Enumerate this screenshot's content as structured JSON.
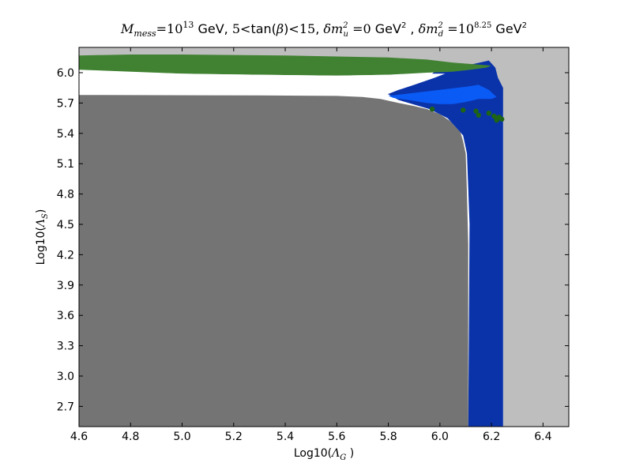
{
  "chart_data": {
    "type": "area",
    "title": {
      "m_sym": "M",
      "m_sub": "mess",
      "eq1": "=",
      "base1": "10",
      "exp1": "13",
      "unit1": " GeV, ",
      "five": "5",
      "lt1": "<",
      "tanb": "tan(",
      "beta": "β",
      "tanb_close": ")",
      "lt2": "<",
      "fifteen": "15",
      "comma1": ", ",
      "dmu": "δm",
      "dmu_sub": "u",
      "dmu_sup": "2",
      "eq2": " =",
      "zero": "0",
      "gev2a": " GeV",
      "gev2a_sup": "2",
      "comma2": " , ",
      "dmd": "δm",
      "dmd_sub": "d",
      "dmd_sup": "2",
      "eq3": " =",
      "base2": "10",
      "exp2": "8.25",
      "gev2b": "  GeV",
      "gev2b_sup": "2"
    },
    "xlabel": {
      "prefix": "Log10(",
      "sym": "Λ",
      "sub": "G",
      "suffix": " )"
    },
    "ylabel": {
      "prefix": "Log10(",
      "sym": "Λ",
      "sub": "S",
      "suffix": ")"
    },
    "xlim": [
      4.6,
      6.5
    ],
    "ylim": [
      2.5,
      6.25
    ],
    "x_ticks": [
      "4.6",
      "4.8",
      "5.0",
      "5.2",
      "5.4",
      "5.6",
      "5.8",
      "6.0",
      "6.2",
      "6.4"
    ],
    "y_ticks": [
      "2.7",
      "3.0",
      "3.3",
      "3.6",
      "3.9",
      "4.2",
      "4.5",
      "4.8",
      "5.1",
      "5.4",
      "5.7",
      "6.0"
    ],
    "grid": false,
    "colors": {
      "excluded_light": "#bebebe",
      "excluded_dark": "#747474",
      "green": "#418232",
      "blue_dark": "#0a33aa",
      "blue_light": "#0a5bf5",
      "allowed": "#ffffff",
      "dots": "#1e6414"
    },
    "regions": [
      {
        "id": "light-gray",
        "color_key": "excluded_light",
        "polygon": [
          [
            4.6,
            6.25
          ],
          [
            6.5,
            6.25
          ],
          [
            6.5,
            2.5
          ],
          [
            4.6,
            2.5
          ]
        ]
      },
      {
        "id": "white",
        "color_key": "allowed",
        "polygon": [
          [
            4.6,
            6.04
          ],
          [
            6.05,
            6.04
          ],
          [
            6.2,
            5.92
          ],
          [
            6.245,
            5.6
          ],
          [
            6.245,
            2.5
          ],
          [
            4.6,
            2.5
          ]
        ]
      },
      {
        "id": "dark-blue",
        "color_key": "blue_dark",
        "polygon": [
          [
            6.0,
            6.05
          ],
          [
            6.12,
            6.08
          ],
          [
            6.19,
            6.12
          ],
          [
            6.215,
            6.05
          ],
          [
            6.225,
            5.95
          ],
          [
            6.245,
            5.85
          ],
          [
            6.245,
            2.5
          ],
          [
            6.11,
            2.5
          ],
          [
            6.115,
            4.5
          ],
          [
            6.105,
            5.2
          ],
          [
            6.09,
            5.38
          ],
          [
            6.03,
            5.55
          ],
          [
            5.96,
            5.64
          ],
          [
            5.84,
            5.73
          ],
          [
            5.79,
            5.8
          ],
          [
            5.85,
            5.85
          ],
          [
            5.95,
            5.95
          ]
        ]
      },
      {
        "id": "light-blue",
        "color_key": "blue_light",
        "polygon": [
          [
            5.8,
            5.77
          ],
          [
            5.9,
            5.8
          ],
          [
            6.0,
            5.83
          ],
          [
            6.1,
            5.86
          ],
          [
            6.15,
            5.88
          ],
          [
            6.19,
            5.83
          ],
          [
            6.22,
            5.76
          ],
          [
            6.2,
            5.74
          ],
          [
            6.15,
            5.74
          ],
          [
            6.1,
            5.71
          ],
          [
            6.05,
            5.69
          ],
          [
            6.0,
            5.69
          ],
          [
            5.95,
            5.7
          ],
          [
            5.88,
            5.73
          ],
          [
            5.82,
            5.75
          ]
        ]
      },
      {
        "id": "dark-gray",
        "color_key": "excluded_dark",
        "polygon": [
          [
            4.6,
            5.78
          ],
          [
            5.3,
            5.775
          ],
          [
            5.6,
            5.77
          ],
          [
            5.7,
            5.76
          ],
          [
            5.77,
            5.74
          ],
          [
            5.84,
            5.7
          ],
          [
            5.9,
            5.67
          ],
          [
            5.95,
            5.64
          ],
          [
            6.0,
            5.59
          ],
          [
            6.04,
            5.52
          ],
          [
            6.08,
            5.41
          ],
          [
            6.09,
            5.32
          ],
          [
            6.1,
            5.2
          ],
          [
            6.105,
            4.8
          ],
          [
            6.11,
            4.3
          ],
          [
            6.11,
            2.5
          ],
          [
            4.6,
            2.5
          ]
        ]
      },
      {
        "id": "green",
        "color_key": "green",
        "polygon": [
          [
            4.6,
            6.17
          ],
          [
            4.8,
            6.18
          ],
          [
            5.0,
            6.18
          ],
          [
            5.2,
            6.175
          ],
          [
            5.4,
            6.17
          ],
          [
            5.6,
            6.16
          ],
          [
            5.8,
            6.15
          ],
          [
            5.95,
            6.13
          ],
          [
            6.05,
            6.1
          ],
          [
            6.15,
            6.08
          ],
          [
            6.2,
            6.07
          ],
          [
            6.18,
            6.05
          ],
          [
            6.12,
            6.03
          ],
          [
            6.05,
            6.01
          ],
          [
            5.95,
            6.0
          ],
          [
            5.8,
            5.98
          ],
          [
            5.6,
            5.97
          ],
          [
            5.3,
            5.98
          ],
          [
            5.0,
            5.99
          ],
          [
            4.6,
            6.03
          ]
        ]
      },
      {
        "id": "white-strip",
        "color_key": "allowed",
        "polygon": [
          [
            4.6,
            6.02
          ],
          [
            5.0,
            5.99
          ],
          [
            5.3,
            5.98
          ],
          [
            5.6,
            5.97
          ],
          [
            5.8,
            5.98
          ],
          [
            5.95,
            5.99
          ],
          [
            6.02,
            5.99
          ],
          [
            5.98,
            5.95
          ],
          [
            5.9,
            5.88
          ],
          [
            5.84,
            5.83
          ],
          [
            5.8,
            5.79
          ],
          [
            5.74,
            5.77
          ],
          [
            5.6,
            5.775
          ],
          [
            5.3,
            5.78
          ],
          [
            4.6,
            5.79
          ]
        ]
      }
    ],
    "dots": [
      [
        5.97,
        5.64
      ],
      [
        6.09,
        5.63
      ],
      [
        6.14,
        5.62
      ],
      [
        6.15,
        5.58
      ],
      [
        6.19,
        5.6
      ],
      [
        6.21,
        5.57
      ],
      [
        6.22,
        5.55
      ],
      [
        6.23,
        5.56
      ],
      [
        6.22,
        5.53
      ],
      [
        6.24,
        5.54
      ]
    ]
  }
}
